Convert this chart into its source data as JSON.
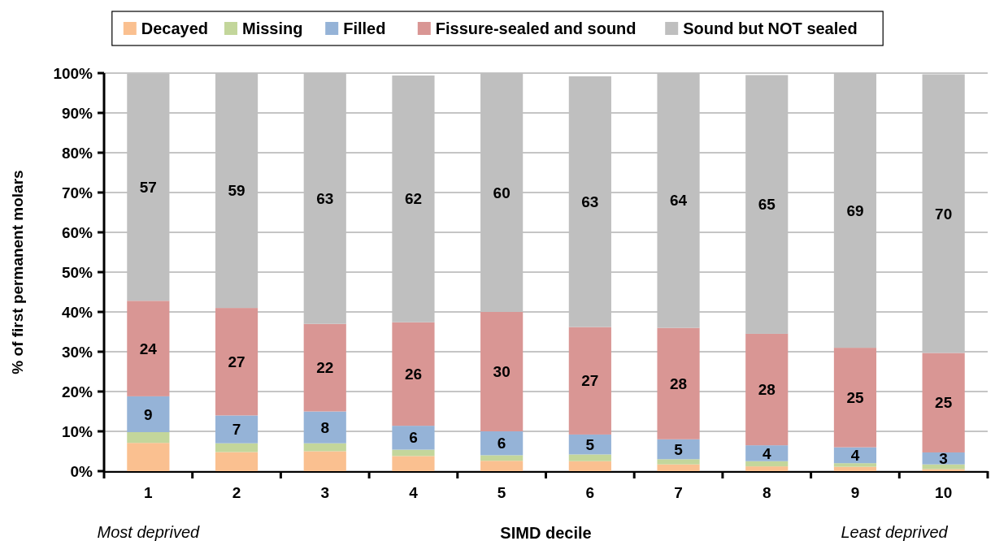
{
  "chart_data": {
    "type": "bar",
    "stacked": true,
    "xlabel": "SIMD decile",
    "ylabel": "% of first permanent molars",
    "categories": [
      "1",
      "2",
      "3",
      "4",
      "5",
      "6",
      "7",
      "8",
      "9",
      "10"
    ],
    "series": [
      {
        "name": "Decayed",
        "color": "#fac090",
        "values": [
          7.1,
          4.8,
          5.0,
          3.8,
          2.6,
          2.5,
          1.7,
          1.2,
          1.1,
          0.5
        ]
      },
      {
        "name": "Missing",
        "color": "#c3d69b",
        "values": [
          2.7,
          2.2,
          2.0,
          1.6,
          1.4,
          1.7,
          1.3,
          1.3,
          0.9,
          1.2
        ]
      },
      {
        "name": "Filled",
        "color": "#95b3d7",
        "values": [
          9,
          7,
          8,
          6,
          6,
          5,
          5,
          4,
          4,
          3
        ],
        "value_labels": [
          "9",
          "7",
          "8",
          "6",
          "6",
          "5",
          "5",
          "4",
          "4",
          "3"
        ]
      },
      {
        "name": "Fissure-sealed and sound",
        "color": "#d99694",
        "values": [
          24,
          27,
          22,
          26,
          30,
          27,
          28,
          28,
          25,
          25
        ],
        "value_labels": [
          "24",
          "27",
          "22",
          "26",
          "30",
          "27",
          "28",
          "28",
          "25",
          "25"
        ]
      },
      {
        "name": "Sound but NOT sealed",
        "color": "#bfbfbf",
        "values": [
          57,
          59,
          63,
          62,
          60,
          63,
          64,
          65,
          69,
          70
        ],
        "value_labels": [
          "57",
          "59",
          "63",
          "62",
          "60",
          "63",
          "64",
          "65",
          "69",
          "70"
        ]
      }
    ],
    "ylim": [
      0,
      100
    ],
    "yticks": [
      {
        "value": 0,
        "label": "0%"
      },
      {
        "value": 10,
        "label": "10%"
      },
      {
        "value": 20,
        "label": "20%"
      },
      {
        "value": 30,
        "label": "30%"
      },
      {
        "value": 40,
        "label": "40%"
      },
      {
        "value": 50,
        "label": "50%"
      },
      {
        "value": 60,
        "label": "60%"
      },
      {
        "value": 70,
        "label": "70%"
      },
      {
        "value": 80,
        "label": "80%"
      },
      {
        "value": 90,
        "label": "90%"
      },
      {
        "value": 100,
        "label": "100%"
      }
    ],
    "grid": "y",
    "legend": "top",
    "annotations": [
      "Most deprived",
      "Least deprived"
    ]
  }
}
